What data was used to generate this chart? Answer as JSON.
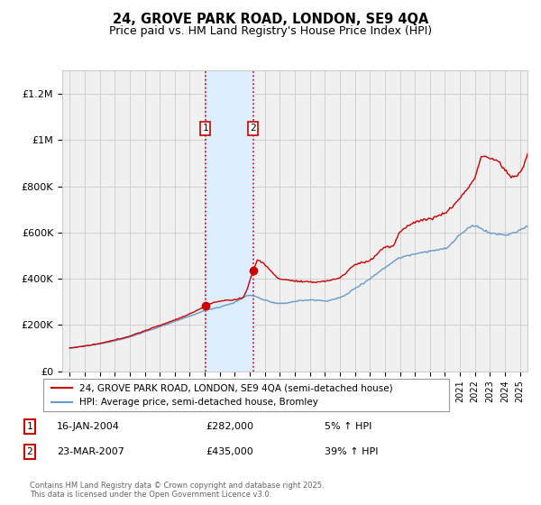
{
  "title": "24, GROVE PARK ROAD, LONDON, SE9 4QA",
  "subtitle": "Price paid vs. HM Land Registry's House Price Index (HPI)",
  "legend_line1": "24, GROVE PARK ROAD, LONDON, SE9 4QA (semi-detached house)",
  "legend_line2": "HPI: Average price, semi-detached house, Bromley",
  "annotation1_label": "1",
  "annotation1_date": "16-JAN-2004",
  "annotation1_price": "£282,000",
  "annotation1_hpi": "5% ↑ HPI",
  "annotation2_label": "2",
  "annotation2_date": "23-MAR-2007",
  "annotation2_price": "£435,000",
  "annotation2_hpi": "39% ↑ HPI",
  "footnote": "Contains HM Land Registry data © Crown copyright and database right 2025.\nThis data is licensed under the Open Government Licence v3.0.",
  "sale1_x": 2004.04,
  "sale1_y": 282000,
  "sale2_x": 2007.23,
  "sale2_y": 435000,
  "shade_x1": 2004.04,
  "shade_x2": 2007.23,
  "red_color": "#cc0000",
  "blue_color": "#6699cc",
  "shade_color": "#ddeeff",
  "grid_color": "#cccccc",
  "bg_color": "#f0f0f0",
  "ylim": [
    0,
    1300000
  ],
  "xlim_start": 1994.5,
  "xlim_end": 2025.5,
  "yticks": [
    0,
    200000,
    400000,
    600000,
    800000,
    1000000,
    1200000
  ],
  "ylabels": [
    "£0",
    "£200K",
    "£400K",
    "£600K",
    "£800K",
    "£1M",
    "£1.2M"
  ]
}
